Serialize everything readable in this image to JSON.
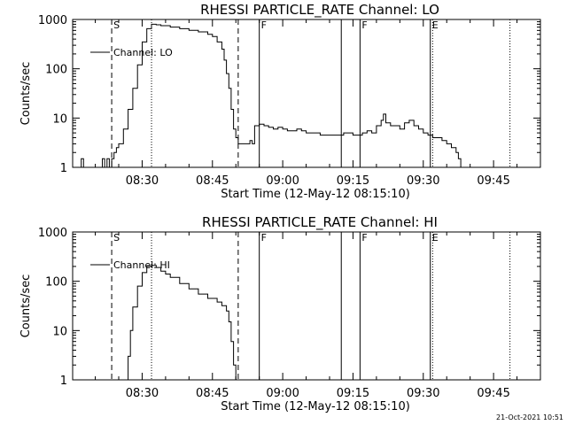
{
  "stamp": "21-Oct-2021 10:51",
  "chart_data": [
    {
      "type": "line",
      "title": "RHESSI PARTICLE_RATE Channel: LO",
      "xlabel": "Start Time (12-May-12 08:15:10)",
      "ylabel": "Counts/sec",
      "yscale": "log",
      "ylim": [
        1,
        1000
      ],
      "xlim": [
        "08:15:10",
        "09:55"
      ],
      "x_ticks": [
        "08:30",
        "08:45",
        "09:00",
        "09:15",
        "09:30",
        "09:45"
      ],
      "y_ticks": [
        "1",
        "10",
        "100",
        "1000"
      ],
      "legend": {
        "label": "Channel: LO",
        "position": "top-left"
      },
      "markers": [
        {
          "time": "08:23:30",
          "style": "dashed",
          "label": "S"
        },
        {
          "time": "08:32:00",
          "style": "dotted",
          "label": ""
        },
        {
          "time": "08:50:30",
          "style": "dashed",
          "label": ""
        },
        {
          "time": "08:55:00",
          "style": "solid",
          "label": "F"
        },
        {
          "time": "09:12:30",
          "style": "solid",
          "label": ""
        },
        {
          "time": "09:16:30",
          "style": "solid",
          "label": "F"
        },
        {
          "time": "09:31:30",
          "style": "solid",
          "label": "E"
        },
        {
          "time": "09:32:00",
          "style": "dotted",
          "label": ""
        },
        {
          "time": "09:48:30",
          "style": "dotted",
          "label": ""
        }
      ],
      "series": [
        {
          "x": [
            "08:16:30",
            "08:17:00",
            "08:17:30",
            "08:21:00",
            "08:21:30",
            "08:22:00",
            "08:22:30",
            "08:23:00",
            "08:23:30",
            "08:24:00",
            "08:24:30",
            "08:25:00",
            "08:26:00",
            "08:27:00",
            "08:28:00",
            "08:29:00",
            "08:30:00",
            "08:31:00",
            "08:32:00",
            "08:33:00",
            "08:34:00",
            "08:36:00",
            "08:38:00",
            "08:40:00",
            "08:42:00",
            "08:44:00",
            "08:45:00",
            "08:46:00",
            "08:47:00",
            "08:47:30",
            "08:48:00",
            "08:48:30",
            "08:49:00",
            "08:49:30",
            "08:50:00",
            "08:50:30",
            "08:51:00",
            "08:52:00",
            "08:53:00",
            "08:53:30",
            "08:54:00",
            "08:55:00",
            "08:56:00",
            "08:57:00",
            "08:58:00",
            "08:59:00",
            "09:00:00",
            "09:01:00",
            "09:02:00",
            "09:03:00",
            "09:04:00",
            "09:05:00",
            "09:06:00",
            "09:07:00",
            "09:08:00",
            "09:09:00",
            "09:10:00",
            "09:11:00",
            "09:12:00",
            "09:13:00",
            "09:14:00",
            "09:15:00",
            "09:16:00",
            "09:17:00",
            "09:18:00",
            "09:19:00",
            "09:20:00",
            "09:21:00",
            "09:21:30",
            "09:22:00",
            "09:23:00",
            "09:24:00",
            "09:25:00",
            "09:26:00",
            "09:27:00",
            "09:28:00",
            "09:29:00",
            "09:30:00",
            "09:31:00",
            "09:32:00",
            "09:33:00",
            "09:34:00",
            "09:35:00",
            "09:36:00",
            "09:37:00",
            "09:37:30",
            "09:38:00"
          ],
          "y": [
            1,
            1.5,
            1,
            1,
            1.5,
            1,
            1.5,
            1,
            1.5,
            2,
            2.5,
            3,
            6,
            15,
            40,
            120,
            350,
            650,
            800,
            780,
            750,
            700,
            650,
            600,
            560,
            500,
            450,
            350,
            250,
            150,
            80,
            40,
            15,
            6,
            4,
            3,
            3,
            3,
            3.5,
            3,
            7,
            7.5,
            7,
            6.5,
            6,
            6.5,
            6,
            5.5,
            5.5,
            6,
            5.5,
            5,
            5,
            5,
            4.5,
            4.5,
            4.5,
            4.5,
            4.5,
            5,
            5,
            4.5,
            4.5,
            5,
            5.5,
            5,
            7,
            9,
            12,
            8,
            7,
            7,
            6,
            8,
            9,
            7,
            6,
            5,
            4.5,
            4,
            4,
            3.5,
            3,
            2.5,
            2,
            1.5,
            1
          ]
        }
      ]
    },
    {
      "type": "line",
      "title": "RHESSI PARTICLE_RATE Channel: HI",
      "xlabel": "Start Time (12-May-12 08:15:10)",
      "ylabel": "Counts/sec",
      "yscale": "log",
      "ylim": [
        1,
        1000
      ],
      "xlim": [
        "08:15:10",
        "09:55"
      ],
      "x_ticks": [
        "08:30",
        "08:45",
        "09:00",
        "09:15",
        "09:30",
        "09:45"
      ],
      "y_ticks": [
        "1",
        "10",
        "100",
        "1000"
      ],
      "legend": {
        "label": "Channel: HI",
        "position": "top-left"
      },
      "markers": [
        {
          "time": "08:23:30",
          "style": "dashed",
          "label": "S"
        },
        {
          "time": "08:32:00",
          "style": "dotted",
          "label": ""
        },
        {
          "time": "08:50:30",
          "style": "dashed",
          "label": ""
        },
        {
          "time": "08:55:00",
          "style": "solid",
          "label": "F"
        },
        {
          "time": "09:12:30",
          "style": "solid",
          "label": ""
        },
        {
          "time": "09:16:30",
          "style": "solid",
          "label": "F"
        },
        {
          "time": "09:31:30",
          "style": "solid",
          "label": "E"
        },
        {
          "time": "09:32:00",
          "style": "dotted",
          "label": ""
        },
        {
          "time": "09:48:30",
          "style": "dotted",
          "label": ""
        }
      ],
      "series": [
        {
          "x": [
            "08:26:30",
            "08:27:00",
            "08:27:30",
            "08:28:00",
            "08:29:00",
            "08:30:00",
            "08:31:00",
            "08:32:00",
            "08:33:00",
            "08:34:00",
            "08:35:00",
            "08:36:00",
            "08:38:00",
            "08:40:00",
            "08:42:00",
            "08:44:00",
            "08:46:00",
            "08:47:00",
            "08:48:00",
            "08:48:30",
            "08:49:00",
            "08:49:30",
            "08:50:00"
          ],
          "y": [
            1,
            3,
            10,
            30,
            80,
            150,
            200,
            210,
            190,
            160,
            140,
            120,
            90,
            70,
            55,
            45,
            38,
            32,
            25,
            15,
            6,
            2,
            1
          ]
        }
      ]
    }
  ]
}
